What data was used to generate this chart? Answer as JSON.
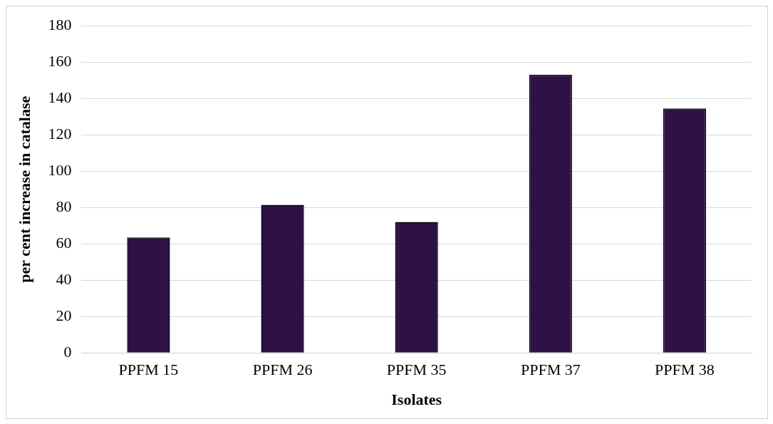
{
  "chart_data": {
    "type": "bar",
    "xlabel": "Isolates",
    "ylabel": "per cent increase in catalase",
    "categories": [
      "PPFM 15",
      "PPFM 26",
      "PPFM 35",
      "PPFM 37",
      "PPFM 38"
    ],
    "values": [
      63.5,
      81.5,
      72,
      153,
      134.5
    ],
    "color": "#2e1245",
    "ylim": [
      0,
      180
    ],
    "yticks": [
      0,
      20,
      40,
      60,
      80,
      100,
      120,
      140,
      160,
      180
    ],
    "grid": "y"
  }
}
